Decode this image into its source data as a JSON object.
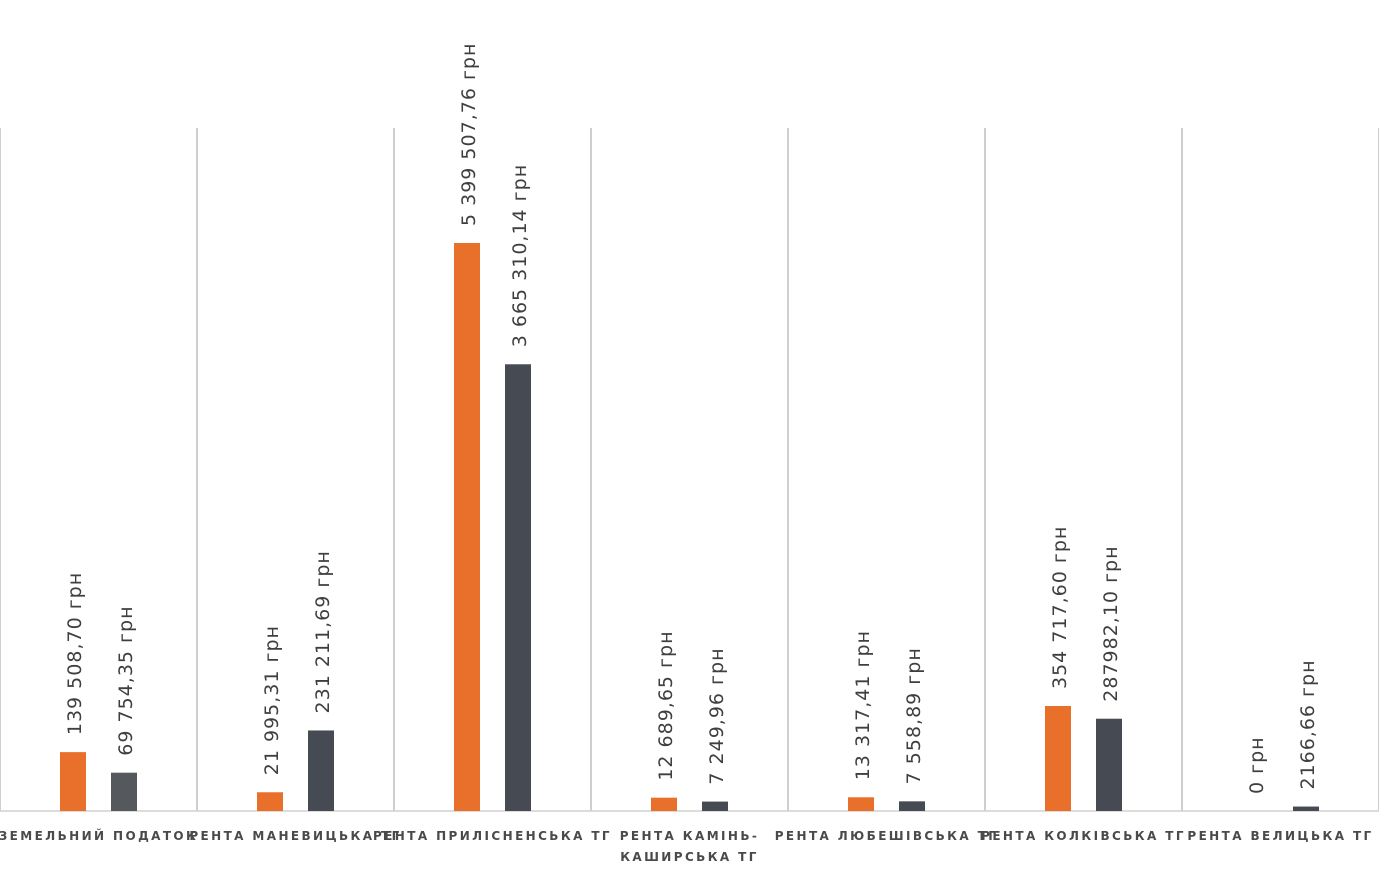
{
  "chart_data": {
    "type": "bar",
    "categories": [
      "ЗЕМЕЛЬНИЙ ПОДАТОК",
      "РЕНТА МАНЕВИЦЬКА ТГ",
      "РЕНТА ПРИЛІСНЕНСЬКА ТГ",
      "РЕНТА КАМІНЬ-КАШИРСЬКА ТГ",
      "РЕНТА ЛЮБЕШІВСЬКА ТГ",
      "РЕНТА КОЛКІВСЬКА ТГ",
      "РЕНТА ВЕЛИЦЬКА ТГ"
    ],
    "category_lines": [
      [
        "ЗЕМЕЛЬНИЙ ПОДАТОК"
      ],
      [
        "РЕНТА МАНЕВИЦЬКА ТГ"
      ],
      [
        "РЕНТА ПРИЛІСНЕНСЬКА ТГ"
      ],
      [
        "РЕНТА КАМІНЬ-",
        "КАШИРСЬКА ТГ"
      ],
      [
        "РЕНТА ЛЮБЕШІВСЬКА ТГ"
      ],
      [
        "РЕНТА КОЛКІВСЬКА ТГ"
      ],
      [
        "РЕНТА ВЕЛИЦЬКА ТГ"
      ]
    ],
    "series": [
      {
        "color": "#e8702a",
        "values": [
          139508.7,
          21995.31,
          5399507.76,
          12689.65,
          13317.41,
          354717.6,
          0
        ],
        "labels": [
          "139 508,70 грн",
          "21 995,31 грн",
          "5 399 507,76 грн",
          "12 689,65 грн",
          "13 317,41 грн",
          "354 717,60 грн",
          "0 грн"
        ]
      },
      {
        "color": "#464a52",
        "values": [
          69754.35,
          231211.69,
          3665310.14,
          7249.96,
          7558.89,
          287982.1,
          2166.66
        ],
        "labels": [
          "69 754,35 грн",
          "231 211,69 грн",
          "3 665 310,14 грн",
          "7 249,96 грн",
          "7 558,89 грн",
          "287982,10 грн",
          "2166,66 грн"
        ]
      }
    ],
    "first_category_second_bar_color": "#55585d",
    "scale": "nonlinear (category-specific bar heights)",
    "grid": false,
    "legend": "none",
    "title": "",
    "xlabel": "",
    "ylabel": ""
  }
}
